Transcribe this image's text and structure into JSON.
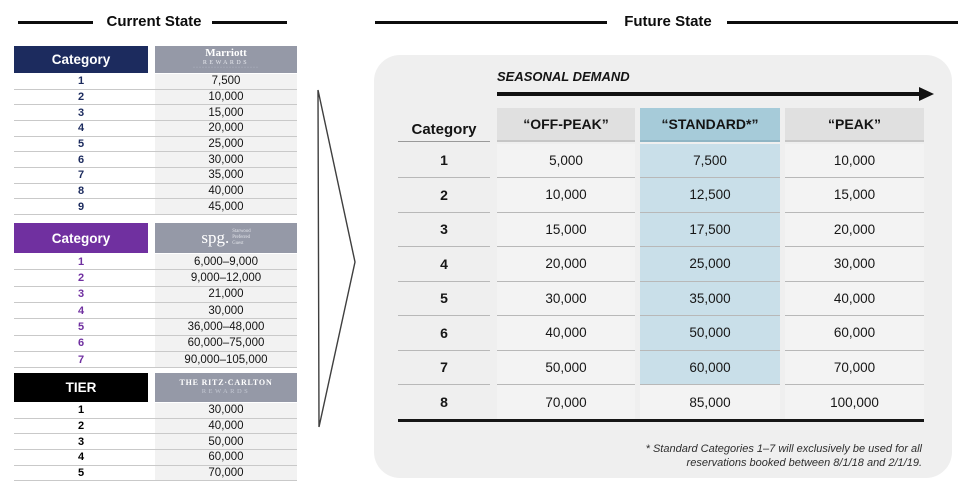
{
  "titles": {
    "current": "Current State",
    "future": "Future State"
  },
  "colors": {
    "marriott_navy": "#1c2b5e",
    "spg_purple": "#7030a0",
    "ritz_black": "#000000",
    "logo_gray": "#9599a7",
    "panel_gray": "#efefef",
    "standard_header_blue": "#a6cbd9",
    "standard_cell_blue": "#c9dfe9"
  },
  "current_tables": [
    {
      "id": "marriott",
      "header_label": "Category",
      "header_bg": "#1c2b5e",
      "number_color": "#1c2b5e",
      "logo": {
        "name": "marriott-rewards-logo",
        "line1": "Marriott",
        "line2": "REWARDS",
        "dots": "······················"
      },
      "rows": [
        [
          "1",
          "7,500"
        ],
        [
          "2",
          "10,000"
        ],
        [
          "3",
          "15,000"
        ],
        [
          "4",
          "20,000"
        ],
        [
          "5",
          "25,000"
        ],
        [
          "6",
          "30,000"
        ],
        [
          "7",
          "35,000"
        ],
        [
          "8",
          "40,000"
        ],
        [
          "9",
          "45,000"
        ]
      ]
    },
    {
      "id": "spg",
      "header_label": "Category",
      "header_bg": "#7030a0",
      "number_color": "#7030a0",
      "logo": {
        "name": "spg-starwood-preferred-guest-logo",
        "main": "spg.",
        "stack": [
          "Starwood",
          "Preferred",
          "Guest"
        ]
      },
      "rows": [
        [
          "1",
          "6,000–9,000"
        ],
        [
          "2",
          "9,000–12,000"
        ],
        [
          "3",
          "21,000"
        ],
        [
          "4",
          "30,000"
        ],
        [
          "5",
          "36,000–48,000"
        ],
        [
          "6",
          "60,000–75,000"
        ],
        [
          "7",
          "90,000–105,000"
        ]
      ]
    },
    {
      "id": "ritz",
      "header_label": "TIER",
      "header_bg": "#000000",
      "number_color": "#000000",
      "logo": {
        "name": "ritz-carlton-rewards-logo",
        "line1": "THE RITZ·CARLTON",
        "line2": "REWARDS"
      },
      "rows": [
        [
          "1",
          "30,000"
        ],
        [
          "2",
          "40,000"
        ],
        [
          "3",
          "50,000"
        ],
        [
          "4",
          "60,000"
        ],
        [
          "5",
          "70,000"
        ]
      ]
    }
  ],
  "future": {
    "seasonal_label": "SEASONAL DEMAND",
    "columns": {
      "category": "Category",
      "off_peak": "“OFF-PEAK”",
      "standard": "“STANDARD*”",
      "peak": "“PEAK”"
    },
    "rows": [
      [
        "1",
        "5,000",
        "7,500",
        "10,000"
      ],
      [
        "2",
        "10,000",
        "12,500",
        "15,000"
      ],
      [
        "3",
        "15,000",
        "17,500",
        "20,000"
      ],
      [
        "4",
        "20,000",
        "25,000",
        "30,000"
      ],
      [
        "5",
        "30,000",
        "35,000",
        "40,000"
      ],
      [
        "6",
        "40,000",
        "50,000",
        "60,000"
      ],
      [
        "7",
        "50,000",
        "60,000",
        "70,000"
      ],
      [
        "8",
        "70,000",
        "85,000",
        "100,000"
      ]
    ],
    "standard_highlight_rows": 7,
    "footnote_lines": [
      "* Standard Categories 1–7  will exclusively be used for all",
      "reservations booked between 8/1/18 and 2/1/19."
    ]
  }
}
